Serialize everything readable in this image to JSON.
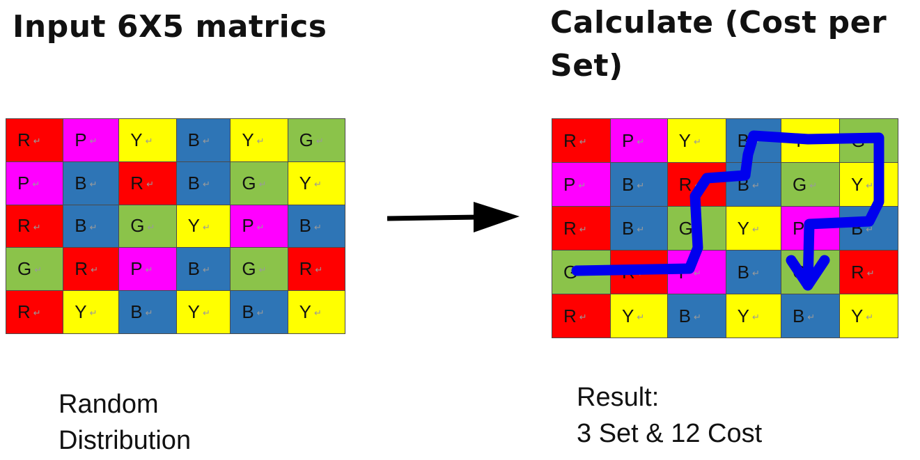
{
  "left_panel": {
    "title": "Input 6X5 matrics",
    "caption_lines": [
      "Random",
      "Distribution"
    ]
  },
  "right_panel": {
    "title": "Calculate (Cost per Set)",
    "caption_lines": [
      "Result:",
      "3 Set & 12 Cost"
    ]
  },
  "colors": {
    "R": "#ff0000",
    "P": "#ff00ff",
    "Y": "#ffff00",
    "B": "#2e75b6",
    "G": "#8bc34a",
    "path": "#0000ee",
    "arrow": "#000000"
  },
  "return_mark": "↵",
  "input_matrix": [
    [
      "R",
      "P",
      "Y",
      "B",
      "Y",
      "G"
    ],
    [
      "P",
      "B",
      "R",
      "B",
      "G",
      "Y"
    ],
    [
      "R",
      "B",
      "G",
      "Y",
      "P",
      "B"
    ],
    [
      "G",
      "R",
      "P",
      "B",
      "G",
      "R"
    ],
    [
      "R",
      "Y",
      "B",
      "Y",
      "B",
      "Y"
    ]
  ],
  "result_matrix": [
    [
      "R",
      "P",
      "Y",
      "B",
      "Y",
      "G"
    ],
    [
      "P",
      "B",
      "R",
      "B",
      "G",
      "Y"
    ],
    [
      "R",
      "B",
      "G",
      "Y",
      "P",
      "B"
    ],
    [
      "G",
      "R",
      "P",
      "B",
      "G",
      "R"
    ],
    [
      "R",
      "Y",
      "B",
      "Y",
      "B",
      "Y"
    ]
  ]
}
